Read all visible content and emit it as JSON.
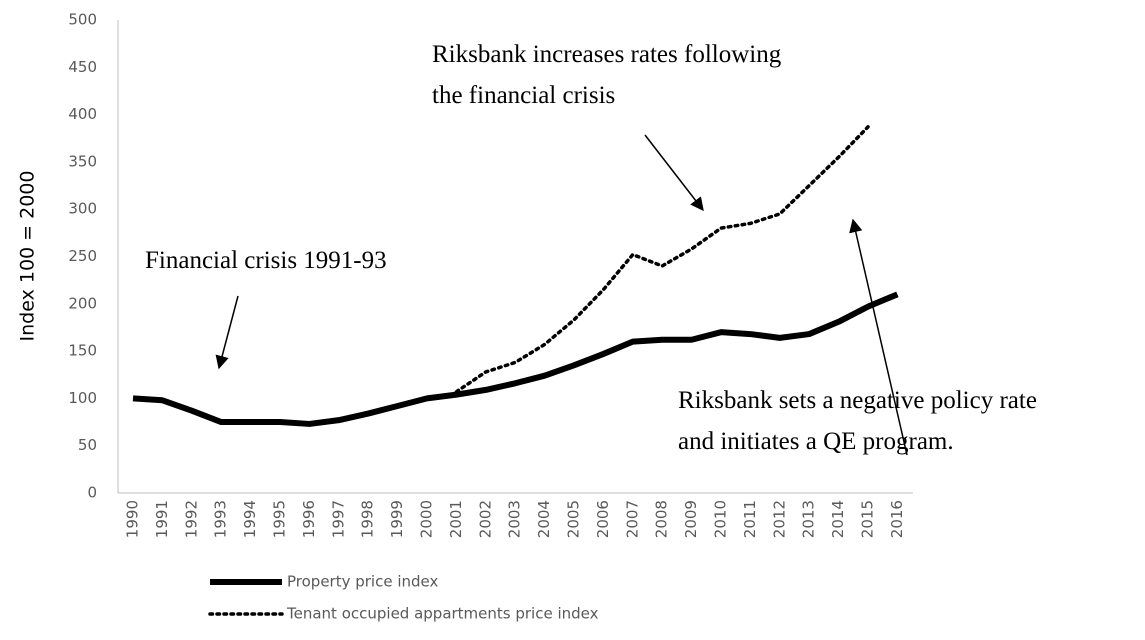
{
  "chart_data": {
    "type": "line",
    "y_label": "Index 100 = 2000",
    "categories": [
      "1990",
      "1991",
      "1992",
      "1993",
      "1994",
      "1995",
      "1996",
      "1997",
      "1998",
      "1999",
      "2000",
      "2001",
      "2002",
      "2003",
      "2004",
      "2005",
      "2006",
      "2007",
      "2008",
      "2009",
      "2010",
      "2011",
      "2012",
      "2013",
      "2014",
      "2015",
      "2016"
    ],
    "series": [
      {
        "name": "Property price index",
        "color": "#000000",
        "dash": "solid",
        "values": [
          100,
          98,
          87,
          75,
          75,
          75,
          73,
          77,
          84,
          92,
          100,
          104,
          109,
          116,
          124,
          135,
          147,
          160,
          162,
          162,
          170,
          168,
          164,
          168,
          181,
          197,
          210
        ]
      },
      {
        "name": "Tenant occupied appartments price index",
        "color": "#000000",
        "dash": "dotted",
        "values": [
          null,
          null,
          null,
          null,
          null,
          null,
          null,
          null,
          null,
          null,
          null,
          107,
          128,
          138,
          157,
          183,
          215,
          252,
          240,
          258,
          280,
          285,
          295,
          325,
          355,
          387,
          null
        ]
      }
    ],
    "ylim": [
      0,
      500
    ],
    "yticks": [
      0,
      50,
      100,
      150,
      200,
      250,
      300,
      350,
      400,
      450,
      500
    ],
    "annotations": [
      "Financial crisis 1991-93",
      "Riksbank increases rates following",
      "the financial crisis",
      "Riksbank sets a negative policy rate",
      "and initiates a QE program."
    ]
  }
}
